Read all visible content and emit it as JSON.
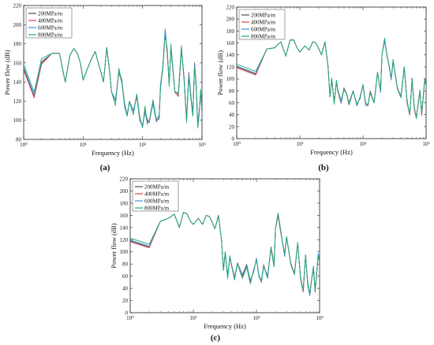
{
  "chart_data": [
    {
      "type": "line",
      "panel": "(a)",
      "xscale": "log",
      "xlim": [
        1,
        1000
      ],
      "ylim": [
        80,
        220
      ],
      "xlabel": "Frequency (Hz)",
      "ylabel": "Power flow (dB)",
      "x_tick_labels": [
        "10⁰",
        "10¹",
        "10²",
        "10³"
      ],
      "y_tick_labels": [
        "80",
        "100",
        "120",
        "140",
        "160",
        "180",
        "200",
        "220"
      ],
      "legend_position": "top-left",
      "series": [
        {
          "name": "200MPa/m",
          "color": "#4d4d4d"
        },
        {
          "name": "400MPa/m",
          "color": "#e8404a"
        },
        {
          "name": "600MPa/m",
          "color": "#3e8fd6"
        },
        {
          "name": "800MPa/m",
          "color": "#1fa876"
        }
      ],
      "x": [
        1,
        1.5,
        2,
        3,
        4,
        5,
        6,
        7,
        8,
        9,
        10,
        12,
        14,
        16,
        18,
        20,
        22,
        25,
        28,
        30,
        35,
        40,
        45,
        50,
        55,
        60,
        70,
        80,
        90,
        100,
        110,
        120,
        130,
        150,
        170,
        190,
        200,
        220,
        240,
        260,
        280,
        300,
        350,
        400,
        450,
        500,
        550,
        600,
        650,
        700,
        750,
        800,
        850,
        900,
        950,
        1000
      ],
      "y": [
        154,
        125,
        160,
        170,
        170,
        140,
        168,
        175,
        170,
        160,
        142,
        155,
        165,
        172,
        160,
        150,
        140,
        176,
        150,
        130,
        120,
        150,
        140,
        115,
        105,
        120,
        110,
        125,
        100,
        95,
        110,
        100,
        98,
        120,
        100,
        102,
        135,
        155,
        193,
        170,
        140,
        175,
        130,
        125,
        175,
        145,
        100,
        150,
        125,
        105,
        160,
        135,
        95,
        110,
        130,
        110
      ]
    },
    {
      "type": "line",
      "panel": "(b)",
      "xscale": "log",
      "xlim": [
        1,
        1000
      ],
      "ylim": [
        0,
        220
      ],
      "xlabel": "Frequency (Hz)",
      "ylabel": "Power flow (dB)",
      "x_tick_labels": [
        "10⁰",
        "10¹",
        "10²",
        "10³"
      ],
      "y_tick_labels": [
        "0",
        "20",
        "40",
        "60",
        "80",
        "100",
        "120",
        "140",
        "160",
        "180",
        "200",
        "220"
      ],
      "legend_position": "top-left",
      "series": [
        {
          "name": "200MPa/m",
          "color": "#4d4d4d"
        },
        {
          "name": "400MPa/m",
          "color": "#e8404a"
        },
        {
          "name": "600MPa/m",
          "color": "#3e8fd6"
        },
        {
          "name": "800MPa/m",
          "color": "#1fa876"
        }
      ],
      "x": [
        1,
        2,
        3,
        4,
        5,
        6,
        7,
        8,
        9,
        10,
        12,
        14,
        16,
        18,
        20,
        22,
        25,
        28,
        30,
        32,
        35,
        38,
        40,
        45,
        50,
        55,
        60,
        70,
        80,
        90,
        100,
        110,
        120,
        130,
        150,
        170,
        190,
        200,
        220,
        240,
        260,
        280,
        300,
        350,
        400,
        450,
        500,
        550,
        600,
        650,
        700,
        750,
        800,
        850,
        900,
        950,
        1000
      ],
      "y": [
        120,
        108,
        150,
        152,
        162,
        138,
        165,
        165,
        152,
        145,
        155,
        148,
        162,
        160,
        150,
        140,
        162,
        120,
        70,
        100,
        60,
        95,
        80,
        60,
        85,
        75,
        60,
        80,
        55,
        70,
        90,
        60,
        55,
        80,
        60,
        110,
        80,
        140,
        165,
        140,
        120,
        100,
        130,
        85,
        70,
        120,
        60,
        40,
        100,
        50,
        35,
        60,
        80,
        40,
        70,
        100,
        90
      ]
    },
    {
      "type": "line",
      "panel": "(c)",
      "xscale": "log",
      "xlim": [
        1,
        1000
      ],
      "ylim": [
        0,
        220
      ],
      "xlabel": "Frequency (Hz)",
      "ylabel": "Power flow (dB)",
      "x_tick_labels": [
        "10⁰",
        "10¹",
        "10²",
        "10³"
      ],
      "y_tick_labels": [
        "0",
        "20",
        "40",
        "60",
        "80",
        "100",
        "120",
        "140",
        "160",
        "180",
        "200",
        "220"
      ],
      "legend_position": "top-left",
      "series": [
        {
          "name": "200MPa/m",
          "color": "#4d4d4d"
        },
        {
          "name": "400MPa/m",
          "color": "#e8404a"
        },
        {
          "name": "600MPa/m",
          "color": "#3e8fd6"
        },
        {
          "name": "800MPa/m",
          "color": "#1fa876"
        }
      ],
      "x": [
        1,
        2,
        3,
        4,
        5,
        6,
        7,
        8,
        9,
        10,
        12,
        14,
        16,
        18,
        20,
        22,
        25,
        28,
        30,
        32,
        35,
        38,
        40,
        45,
        50,
        55,
        60,
        70,
        80,
        90,
        100,
        110,
        120,
        130,
        150,
        170,
        190,
        200,
        220,
        240,
        260,
        280,
        300,
        350,
        400,
        450,
        500,
        550,
        600,
        650,
        700,
        750,
        800,
        850,
        900,
        950,
        1000
      ],
      "y": [
        118,
        108,
        150,
        155,
        162,
        140,
        165,
        162,
        150,
        145,
        155,
        145,
        160,
        158,
        148,
        138,
        160,
        118,
        70,
        98,
        60,
        92,
        80,
        58,
        82,
        72,
        60,
        78,
        52,
        68,
        88,
        58,
        52,
        78,
        58,
        108,
        78,
        138,
        160,
        135,
        115,
        95,
        125,
        80,
        65,
        115,
        55,
        35,
        95,
        45,
        30,
        55,
        75,
        35,
        65,
        95,
        85
      ]
    }
  ],
  "panel_labels": [
    "(a)",
    "(b)",
    "(c)"
  ]
}
